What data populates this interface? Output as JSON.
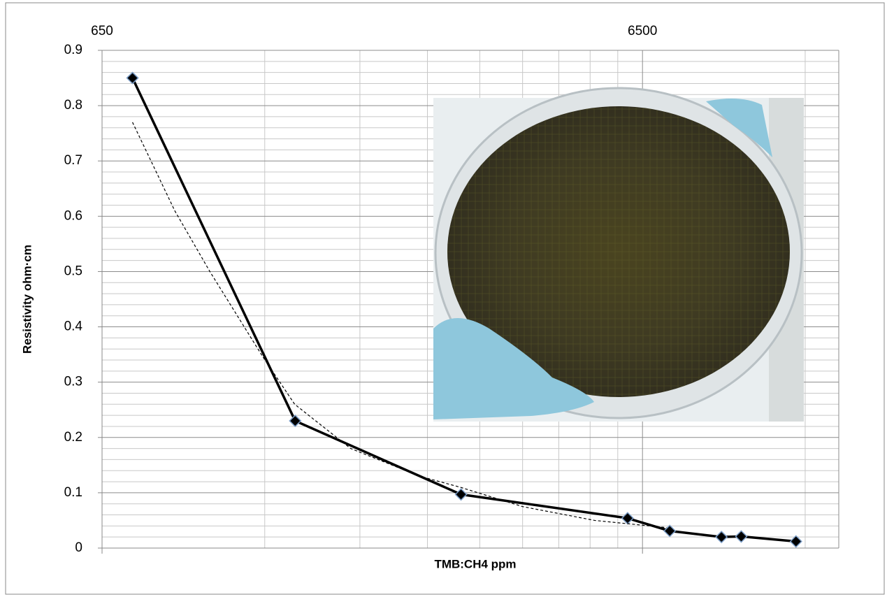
{
  "chart_data": {
    "type": "line",
    "y_label": "Resistivity ohm·cm",
    "x_label": "TMB:CH4 ppm",
    "xscale": "log",
    "xlim": [
      650,
      15000
    ],
    "xticks": [
      650,
      6500
    ],
    "xminorticks": [
      1300,
      1950,
      2600,
      3250,
      3900,
      4550,
      5200,
      5850,
      13000
    ],
    "ylim": [
      0,
      0.9
    ],
    "yticks": [
      0,
      0.1,
      0.2,
      0.3,
      0.4,
      0.5,
      0.6,
      0.7,
      0.8,
      0.9
    ],
    "yminorticks": [
      0.02,
      0.04,
      0.06,
      0.08,
      0.12,
      0.14,
      0.16,
      0.18,
      0.22,
      0.24,
      0.26,
      0.28,
      0.32,
      0.34,
      0.36,
      0.38,
      0.42,
      0.44,
      0.46,
      0.48,
      0.52,
      0.54,
      0.56,
      0.58,
      0.62,
      0.64,
      0.66,
      0.68,
      0.72,
      0.74,
      0.76,
      0.78,
      0.82,
      0.84,
      0.86,
      0.88
    ],
    "grid": true,
    "series": [
      {
        "color": "#000000",
        "style": "solid",
        "marker": "diamond",
        "x": [
          740,
          1480,
          3000,
          6100,
          7300,
          9100,
          9900,
          12500
        ],
        "values": [
          0.85,
          0.23,
          0.097,
          0.054,
          0.031,
          0.02,
          0.021,
          0.012
        ]
      },
      {
        "color": "#000000",
        "style": "dashed",
        "marker": "none",
        "x": [
          740,
          886,
          1029,
          1289,
          1477,
          1875,
          2515,
          2990,
          3900,
          5300,
          7200
        ],
        "values": [
          0.77,
          0.61,
          0.5,
          0.346,
          0.26,
          0.18,
          0.13,
          0.11,
          0.075,
          0.05,
          0.037
        ]
      }
    ]
  }
}
